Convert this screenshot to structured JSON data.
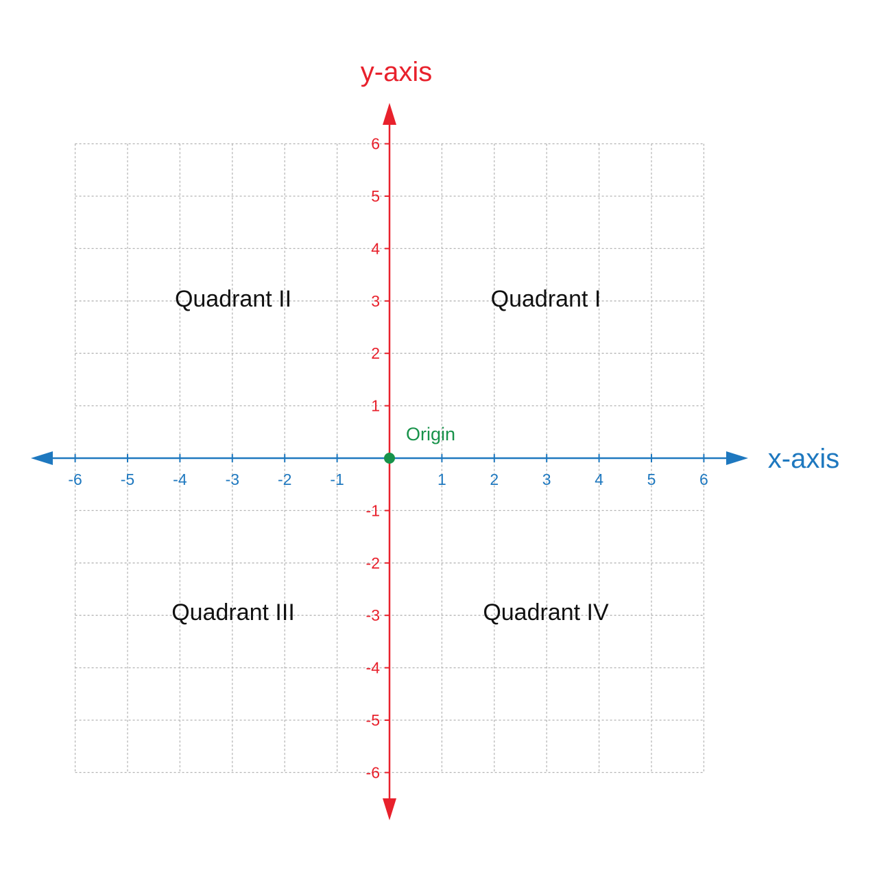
{
  "colors": {
    "x_axis": "#1e78bf",
    "y_axis": "#e8212c",
    "origin": "#17924a",
    "grid": "#b5b5b5",
    "text": "#111111"
  },
  "axes": {
    "x_label": "x-axis",
    "y_label": "y-axis",
    "x_range": [
      -6,
      6
    ],
    "y_range": [
      -6,
      6
    ],
    "x_ticks": [
      "-6",
      "-5",
      "-4",
      "-3",
      "-2",
      "-1",
      "1",
      "2",
      "3",
      "4",
      "5",
      "6"
    ],
    "y_ticks": [
      "6",
      "5",
      "4",
      "3",
      "2",
      "1",
      "-1",
      "-2",
      "-3",
      "-4",
      "-5",
      "-6"
    ]
  },
  "grid": {
    "enabled": true,
    "style": "dashed",
    "step": 1
  },
  "origin": {
    "label": "Origin",
    "x": 0,
    "y": 0
  },
  "quadrants": {
    "q1": "Quadrant I",
    "q2": "Quadrant II",
    "q3": "Quadrant III",
    "q4": "Quadrant IV"
  }
}
